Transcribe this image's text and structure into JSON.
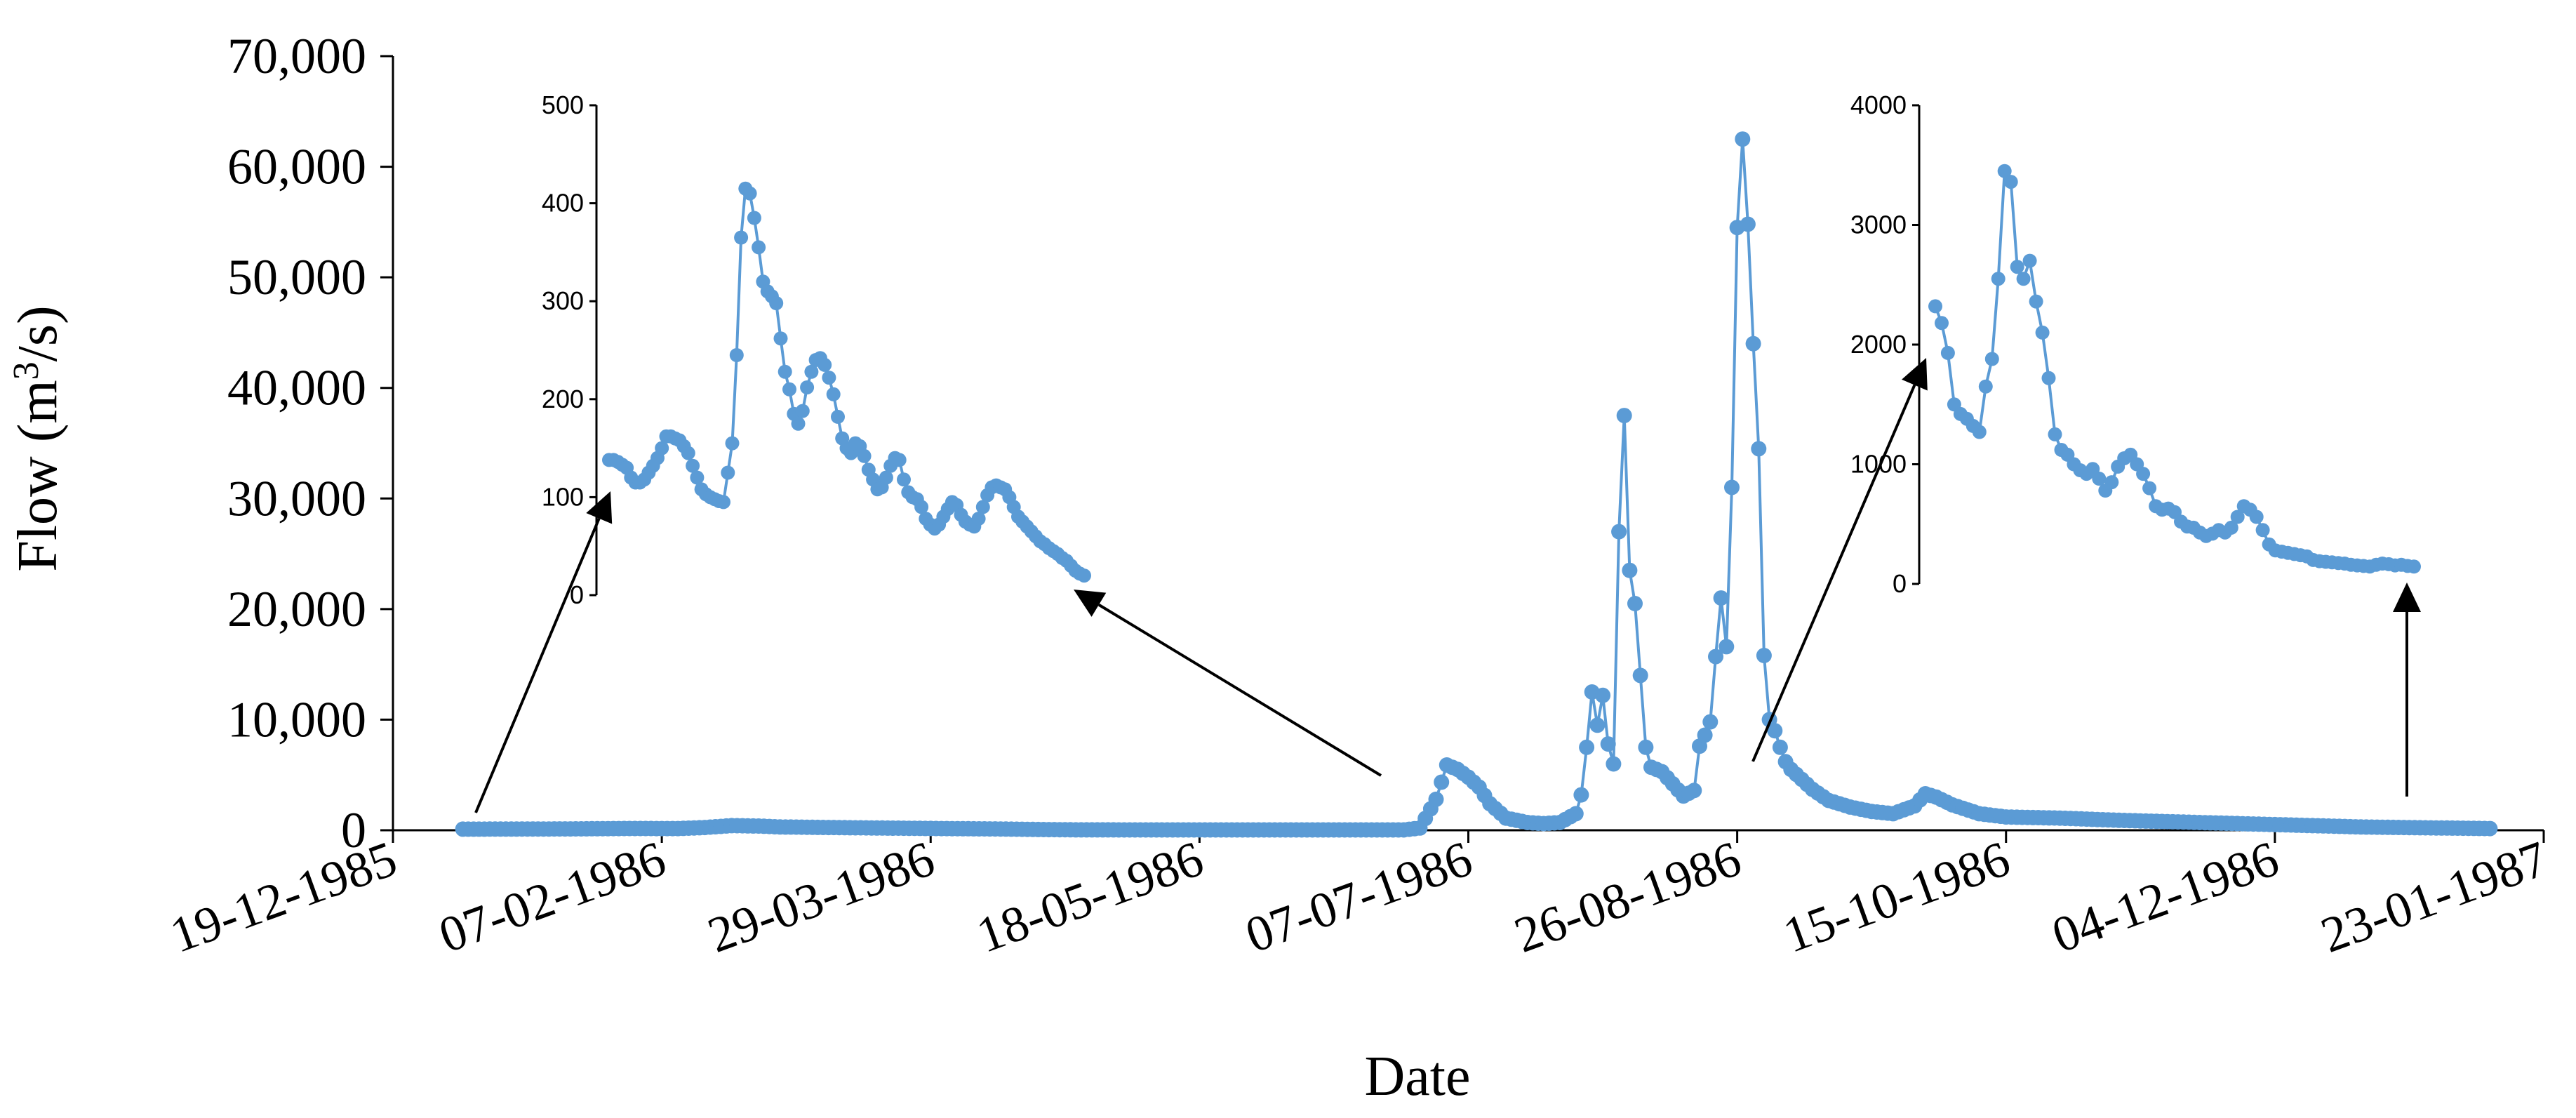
{
  "chart_data": {
    "type": "scatter",
    "series_color": "#5B9BD5",
    "xlabel": "Date",
    "ylabel_text": "Flow (m",
    "ylabel_sup": "3",
    "ylabel_tail": "/s)",
    "ylim": [
      0,
      70000
    ],
    "yticks": [
      "0",
      "10,000",
      "20,000",
      "30,000",
      "40,000",
      "50,000",
      "60,000",
      "70,000"
    ],
    "xlim": [
      "19-12-1985",
      "23-01-1987"
    ],
    "xticks": [
      "19-12-1985",
      "07-02-1986",
      "29-03-1986",
      "18-05-1986",
      "07-07-1986",
      "26-08-1986",
      "15-10-1986",
      "04-12-1986",
      "23-01-1987"
    ],
    "grid": false,
    "legend": "none",
    "main_series": [
      [
        "1986-01-01",
        100
      ],
      [
        "1986-01-10",
        110
      ],
      [
        "1986-01-20",
        120
      ],
      [
        "1986-02-01",
        160
      ],
      [
        "1986-02-10",
        150
      ],
      [
        "1986-02-15",
        250
      ],
      [
        "1986-02-20",
        420
      ],
      [
        "1986-02-25",
        380
      ],
      [
        "1986-03-01",
        300
      ],
      [
        "1986-03-10",
        250
      ],
      [
        "1986-03-20",
        200
      ],
      [
        "1986-04-01",
        150
      ],
      [
        "1986-04-10",
        120
      ],
      [
        "1986-04-20",
        60
      ],
      [
        "1986-04-25",
        40
      ],
      [
        "1986-05-10",
        30
      ],
      [
        "1986-05-25",
        30
      ],
      [
        "1986-06-10",
        30
      ],
      [
        "1986-06-25",
        30
      ],
      [
        "1986-06-28",
        200
      ],
      [
        "1986-07-01",
        2800
      ],
      [
        "1986-07-03",
        5900
      ],
      [
        "1986-07-05",
        5500
      ],
      [
        "1986-07-07",
        4800
      ],
      [
        "1986-07-09",
        3900
      ],
      [
        "1986-07-11",
        2400
      ],
      [
        "1986-07-14",
        1100
      ],
      [
        "1986-07-18",
        700
      ],
      [
        "1986-07-21",
        600
      ],
      [
        "1986-07-24",
        700
      ],
      [
        "1986-07-27",
        1500
      ],
      [
        "1986-07-28",
        3200
      ],
      [
        "1986-07-29",
        7500
      ],
      [
        "1986-07-30",
        12500
      ],
      [
        "1986-07-31",
        9500
      ],
      [
        "1986-08-01",
        12200
      ],
      [
        "1986-08-02",
        7800
      ],
      [
        "1986-08-03",
        6000
      ],
      [
        "1986-08-04",
        27000
      ],
      [
        "1986-08-05",
        37500
      ],
      [
        "1986-08-06",
        23500
      ],
      [
        "1986-08-07",
        20500
      ],
      [
        "1986-08-08",
        14000
      ],
      [
        "1986-08-09",
        7500
      ],
      [
        "1986-08-10",
        5700
      ],
      [
        "1986-08-12",
        5300
      ],
      [
        "1986-08-14",
        4200
      ],
      [
        "1986-08-16",
        3100
      ],
      [
        "1986-08-18",
        3600
      ],
      [
        "1986-08-19",
        7600
      ],
      [
        "1986-08-20",
        8600
      ],
      [
        "1986-08-21",
        9800
      ],
      [
        "1986-08-22",
        15700
      ],
      [
        "1986-08-23",
        21000
      ],
      [
        "1986-08-24",
        16600
      ],
      [
        "1986-08-25",
        31000
      ],
      [
        "1986-08-26",
        54500
      ],
      [
        "1986-08-27",
        62500
      ],
      [
        "1986-08-28",
        54800
      ],
      [
        "1986-08-29",
        44000
      ],
      [
        "1986-08-30",
        34500
      ],
      [
        "1986-08-31",
        15800
      ],
      [
        "1986-09-01",
        10000
      ],
      [
        "1986-09-02",
        9000
      ],
      [
        "1986-09-03",
        7500
      ],
      [
        "1986-09-04",
        6200
      ],
      [
        "1986-09-05",
        5500
      ],
      [
        "1986-09-07",
        4600
      ],
      [
        "1986-09-09",
        3700
      ],
      [
        "1986-09-12",
        2700
      ],
      [
        "1986-09-16",
        2100
      ],
      [
        "1986-09-20",
        1700
      ],
      [
        "1986-09-24",
        1500
      ],
      [
        "1986-09-28",
        2200
      ],
      [
        "1986-09-30",
        3300
      ],
      [
        "1986-10-02",
        3000
      ],
      [
        "1986-10-05",
        2300
      ],
      [
        "1986-10-10",
        1500
      ],
      [
        "1986-10-15",
        1200
      ],
      [
        "1986-10-25",
        1100
      ],
      [
        "1986-11-05",
        900
      ],
      [
        "1986-11-20",
        700
      ],
      [
        "1986-12-05",
        500
      ],
      [
        "1986-12-20",
        300
      ],
      [
        "1987-01-05",
        200
      ],
      [
        "1987-01-13",
        150
      ]
    ],
    "inset_left": {
      "ylim": [
        0,
        500
      ],
      "yticks": [
        "0",
        "100",
        "200",
        "300",
        "400",
        "500"
      ],
      "values": [
        138,
        138,
        136,
        133,
        130,
        120,
        115,
        115,
        118,
        125,
        132,
        140,
        150,
        162,
        162,
        160,
        158,
        152,
        145,
        132,
        120,
        108,
        103,
        100,
        98,
        96,
        95,
        125,
        155,
        245,
        365,
        415,
        410,
        385,
        355,
        320,
        310,
        305,
        298,
        262,
        228,
        210,
        185,
        175,
        188,
        212,
        228,
        240,
        242,
        235,
        222,
        205,
        182,
        160,
        150,
        145,
        155,
        152,
        142,
        128,
        118,
        108,
        110,
        120,
        132,
        140,
        138,
        118,
        105,
        100,
        98,
        90,
        78,
        72,
        68,
        72,
        80,
        88,
        95,
        92,
        82,
        75,
        72,
        70,
        78,
        90,
        102,
        110,
        112,
        110,
        108,
        100,
        90,
        80,
        75,
        70,
        65,
        60,
        55,
        52,
        48,
        45,
        42,
        38,
        35,
        30,
        25,
        22,
        20
      ]
    },
    "inset_right": {
      "ylim": [
        0,
        4000
      ],
      "yticks": [
        "0",
        "1000",
        "2000",
        "3000",
        "4000"
      ],
      "values": [
        2320,
        2180,
        1930,
        1500,
        1420,
        1380,
        1320,
        1270,
        1650,
        1880,
        2550,
        3450,
        3360,
        2650,
        2550,
        2700,
        2360,
        2100,
        1720,
        1250,
        1120,
        1080,
        1000,
        950,
        920,
        960,
        880,
        780,
        850,
        980,
        1050,
        1080,
        1000,
        920,
        800,
        650,
        620,
        630,
        600,
        520,
        480,
        470,
        430,
        400,
        420,
        450,
        430,
        470,
        560,
        650,
        620,
        560,
        450,
        330,
        280,
        270,
        260,
        250,
        240,
        230,
        200,
        190,
        185,
        180,
        175,
        170,
        160,
        155,
        150,
        145,
        160,
        170,
        165,
        155,
        160,
        150,
        145
      ]
    },
    "arrows": [
      "inset-left-start",
      "inset-left-end",
      "inset-right-start",
      "inset-right-end"
    ]
  }
}
